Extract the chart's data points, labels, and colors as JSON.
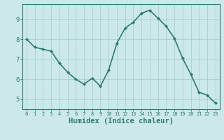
{
  "x": [
    0,
    1,
    2,
    3,
    4,
    5,
    6,
    7,
    8,
    9,
    10,
    11,
    12,
    13,
    14,
    15,
    16,
    17,
    18,
    19,
    20,
    21,
    22,
    23
  ],
  "y": [
    8.0,
    7.6,
    7.5,
    7.4,
    6.8,
    6.35,
    6.0,
    5.75,
    6.05,
    5.65,
    6.45,
    7.8,
    8.55,
    8.85,
    9.3,
    9.45,
    9.05,
    8.65,
    8.05,
    7.05,
    6.25,
    5.35,
    5.2,
    4.8
  ],
  "xlabel": "Humidex (Indice chaleur)",
  "ylim": [
    4.5,
    9.75
  ],
  "xlim": [
    -0.5,
    23.5
  ],
  "yticks": [
    5,
    6,
    7,
    8,
    9
  ],
  "xticks": [
    0,
    1,
    2,
    3,
    4,
    5,
    6,
    7,
    8,
    9,
    10,
    11,
    12,
    13,
    14,
    15,
    16,
    17,
    18,
    19,
    20,
    21,
    22,
    23
  ],
  "line_color": "#2e7d6e",
  "marker": "D",
  "marker_size": 2.0,
  "bg_color": "#cce8e8",
  "grid_color": "#aad0d0",
  "axis_color": "#2e7d6e",
  "tick_color": "#2e7d6e",
  "label_color": "#2e7d6e",
  "line_width": 1.2,
  "xlabel_fontsize": 7.5,
  "tick_fontsize_x": 5.0,
  "tick_fontsize_y": 6.5
}
